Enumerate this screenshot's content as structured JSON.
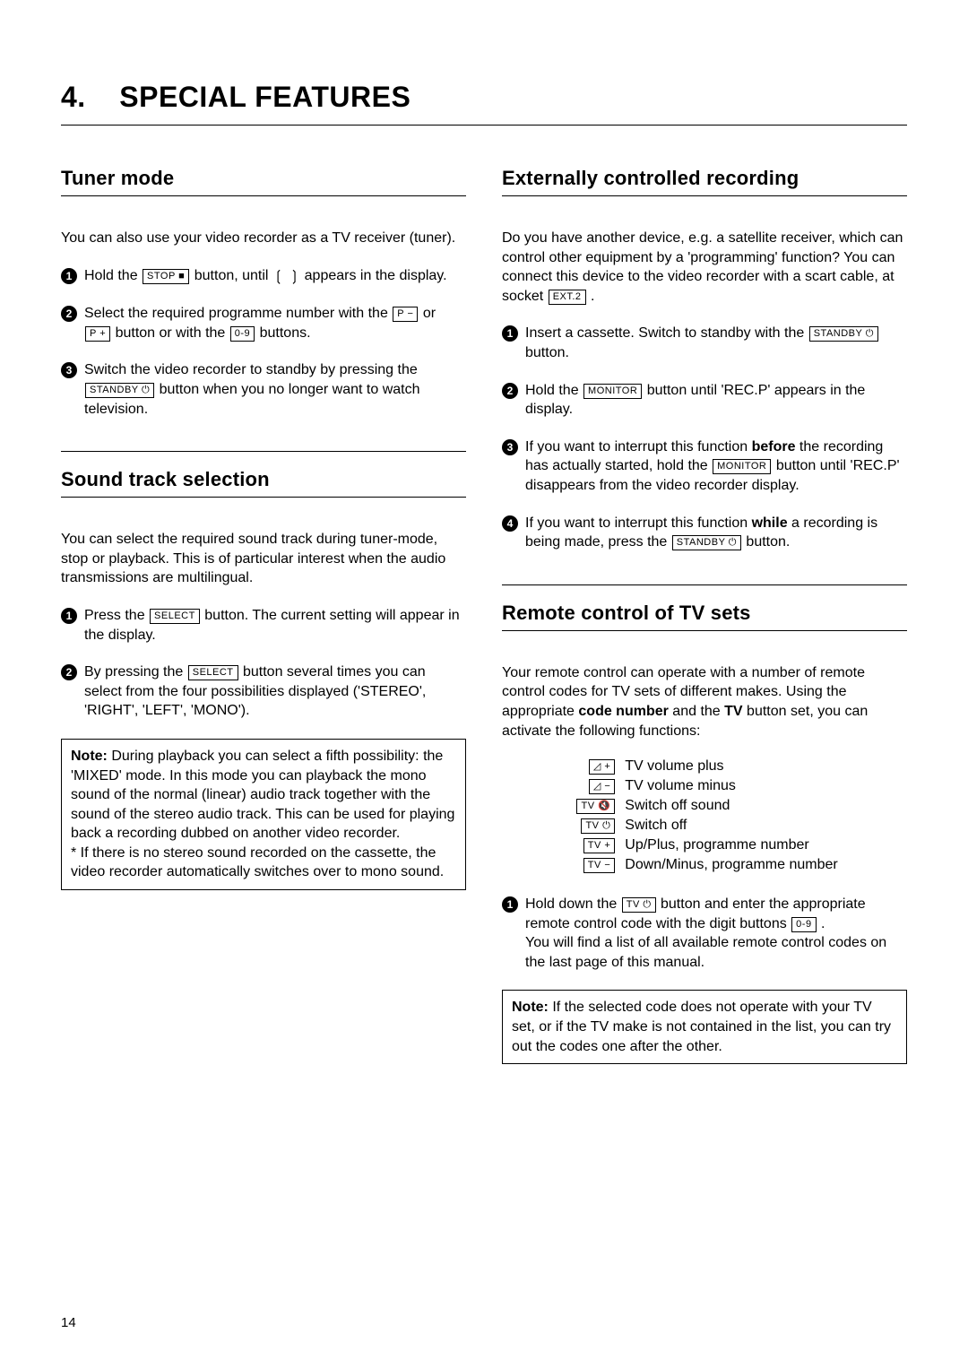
{
  "chapter": {
    "number": "4.",
    "title": "SPECIAL FEATURES"
  },
  "pageNumber": "14",
  "keys": {
    "stop": "STOP ■",
    "pminus": "P −",
    "pplus": "P +",
    "digits": "0-9",
    "standby": "STANDBY ⏻",
    "select": "SELECT",
    "ext2": "EXT.2",
    "monitor": "MONITOR",
    "tvpower": "TV ⏻",
    "tvplus": "TV +",
    "tvminus": "TV −",
    "tvmute": "TV 🔇",
    "volplus": "◿ +",
    "volminus": "◿ −"
  },
  "tuner": {
    "heading": "Tuner mode",
    "intro": "You can also use your video recorder as a TV receiver (tuner).",
    "step1a": "Hold the ",
    "step1b": " button, until ",
    "step1icon": "❲ ❳",
    "step1c": " appears in the display.",
    "step2a": "Select the required programme number with the ",
    "step2b": " or ",
    "step2c": " button or with the ",
    "step2d": " buttons.",
    "step3a": "Switch the video recorder to standby by pressing the ",
    "step3b": " button when you no longer want to watch television."
  },
  "sound": {
    "heading": "Sound track selection",
    "intro": "You can select the required sound track during tuner-mode, stop or playback. This is of particular interest when the audio transmissions are multilingual.",
    "step1a": "Press the ",
    "step1b": " button. The current setting will appear in the display.",
    "step2a": "By pressing the ",
    "step2b": " button several times you can select from the four possibilities displayed ('STEREO', 'RIGHT', 'LEFT', 'MONO').",
    "noteLabel": "Note:",
    "noteBody": " During playback you can select a fifth possibility: the 'MIXED' mode. In this mode you can playback the mono sound of the normal (linear) audio track together with the sound of the stereo audio track. This can be used for playing back a recording dubbed on another video recorder.",
    "noteStar": "* If there is no stereo sound recorded on the cassette, the video recorder automatically switches over to mono sound."
  },
  "ext": {
    "heading": "Externally controlled recording",
    "introA": "Do you have another device, e.g. a satellite receiver, which can control other equipment by a 'programming' function? You can connect this device to the video recorder with a scart cable, at socket ",
    "introB": " .",
    "step1a": "Insert a cassette. Switch to standby with the ",
    "step1b": " button.",
    "step2a": "Hold the ",
    "step2b": " button until 'REC.P' appears in the display.",
    "step3a": "If you want to interrupt this function ",
    "step3bold1": "before",
    "step3b": " the recording has actually started, hold the ",
    "step3c": " button until 'REC.P' disappears from the video recorder display.",
    "step4a": "If you want to interrupt this function ",
    "step4bold": "while",
    "step4b": " a recording is being made, press the ",
    "step4c": " button."
  },
  "remote": {
    "heading": "Remote control of TV sets",
    "introA": "Your remote control can operate with a number of remote control codes for TV sets of different makes. Using the appropriate ",
    "introBold1": "code number",
    "introB": " and the ",
    "introBold2": "TV",
    "introC": " button set, you can activate the following functions:",
    "functions": {
      "volPlus": "TV volume plus",
      "volMinus": "TV volume minus",
      "mute": "Switch off sound",
      "off": "Switch off",
      "progUp": "Up/Plus, programme number",
      "progDown": "Down/Minus, programme number"
    },
    "step1a": "Hold down the ",
    "step1b": " button and enter the appropriate remote control code with the digit buttons ",
    "step1c": " .",
    "step1d": "You will find a list of all available remote control codes on the last page of this manual.",
    "noteLabel": "Note:",
    "noteBody": " If the selected code does not operate with your TV set, or if the TV make is not contained in the list, you can try out the codes one after the other."
  }
}
